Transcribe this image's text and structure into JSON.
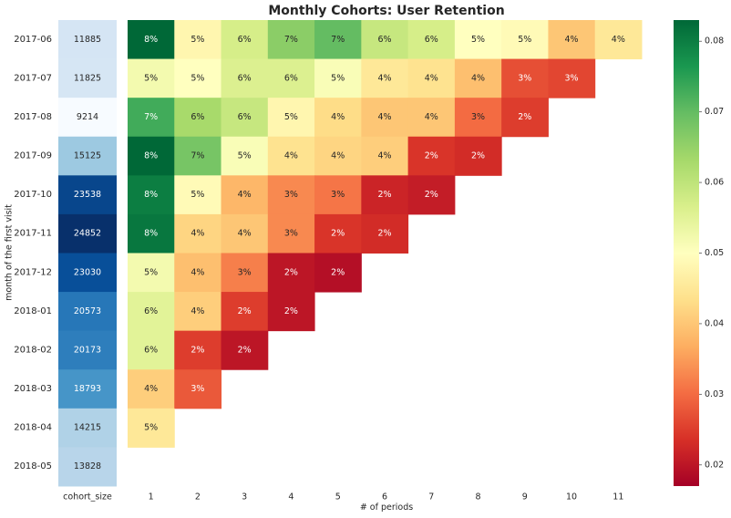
{
  "chart_data": [
    {
      "type": "heatmap",
      "title": "Monthly Cohorts: User Retention",
      "xlabel": "# of periods",
      "ylabel": "month of the first visit",
      "rows": [
        "2017-06",
        "2017-07",
        "2017-08",
        "2017-09",
        "2017-10",
        "2017-11",
        "2017-12",
        "2018-01",
        "2018-02",
        "2018-03",
        "2018-04",
        "2018-05"
      ],
      "cohort_size_label": "cohort_size",
      "cohort_sizes": [
        11885,
        11825,
        9214,
        15125,
        23538,
        24852,
        23030,
        20573,
        20173,
        18793,
        14215,
        13828
      ],
      "cohort_size_colormap": "Blues",
      "periods": [
        "1",
        "2",
        "3",
        "4",
        "5",
        "6",
        "7",
        "8",
        "9",
        "10",
        "11"
      ],
      "colormap": "RdYlGn",
      "color_range": [
        0.017,
        0.083
      ],
      "colorbar_ticks": [
        0.02,
        0.03,
        0.04,
        0.05,
        0.06,
        0.07,
        0.08
      ],
      "values": [
        [
          0.083,
          0.048,
          0.057,
          0.066,
          0.07,
          0.059,
          0.057,
          0.05,
          0.049,
          0.04,
          0.045
        ],
        [
          0.052,
          0.05,
          0.056,
          0.056,
          0.051,
          0.045,
          0.044,
          0.039,
          0.027,
          0.026
        ],
        [
          0.073,
          0.063,
          0.059,
          0.048,
          0.043,
          0.04,
          0.04,
          0.03,
          0.025
        ],
        [
          0.083,
          0.068,
          0.051,
          0.044,
          0.042,
          0.041,
          0.024,
          0.023
        ],
        [
          0.08,
          0.049,
          0.038,
          0.033,
          0.031,
          0.022,
          0.021
        ],
        [
          0.081,
          0.042,
          0.04,
          0.033,
          0.024,
          0.023
        ],
        [
          0.052,
          0.039,
          0.032,
          0.02,
          0.019
        ],
        [
          0.055,
          0.041,
          0.025,
          0.02
        ],
        [
          0.055,
          0.025,
          0.02
        ],
        [
          0.041,
          0.028
        ],
        [
          0.045
        ],
        []
      ],
      "value_labels": [
        [
          "8%",
          "5%",
          "6%",
          "7%",
          "7%",
          "6%",
          "6%",
          "5%",
          "5%",
          "4%",
          "4%"
        ],
        [
          "5%",
          "5%",
          "6%",
          "6%",
          "5%",
          "4%",
          "4%",
          "4%",
          "3%",
          "3%"
        ],
        [
          "7%",
          "6%",
          "6%",
          "5%",
          "4%",
          "4%",
          "4%",
          "3%",
          "2%"
        ],
        [
          "8%",
          "7%",
          "5%",
          "4%",
          "4%",
          "4%",
          "2%",
          "2%"
        ],
        [
          "8%",
          "5%",
          "4%",
          "3%",
          "3%",
          "2%",
          "2%"
        ],
        [
          "8%",
          "4%",
          "4%",
          "3%",
          "2%",
          "2%"
        ],
        [
          "5%",
          "4%",
          "3%",
          "2%",
          "2%"
        ],
        [
          "6%",
          "4%",
          "2%",
          "2%"
        ],
        [
          "6%",
          "2%",
          "2%"
        ],
        [
          "4%",
          "3%"
        ],
        [
          "5%"
        ],
        []
      ]
    }
  ]
}
